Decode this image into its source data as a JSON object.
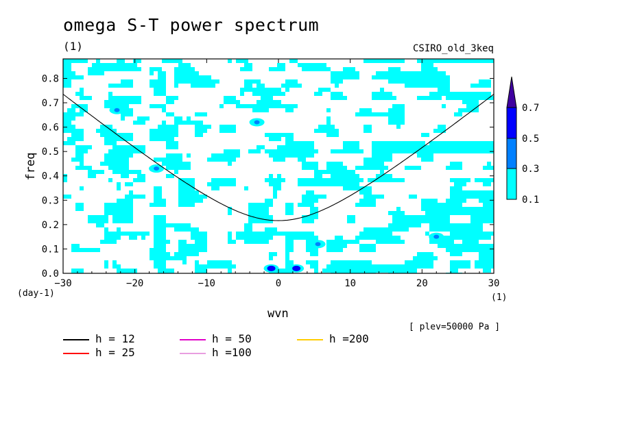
{
  "title": "omega S-T power spectrum",
  "subtitle_units": "(1)",
  "model_label": "CSIRO_old_3keq",
  "level_note": "[ plev=50000 Pa ]",
  "colors": {
    "level_0_1": "#00ffff",
    "level_0_3": "#0080ff",
    "level_0_5": "#0000ff",
    "level_0_7": "#3f00a0",
    "h12": "#000000",
    "h25": "#ff0000",
    "h50": "#e000c8",
    "h100": "#e89ee0",
    "h200": "#ffcc00"
  },
  "chart_data": {
    "type": "heatmap",
    "title": "omega S-T power spectrum",
    "xlabel": "wvn",
    "ylabel": "freq",
    "x_units": "(1)",
    "y_units": "(day-1)",
    "xlim": [
      -30,
      30
    ],
    "ylim": [
      0,
      0.88
    ],
    "xticks": [
      -30,
      -20,
      -10,
      0,
      10,
      20,
      30
    ],
    "yticks": [
      0.0,
      0.1,
      0.2,
      0.3,
      0.4,
      0.5,
      0.6,
      0.7,
      0.8
    ],
    "xtick_labels": [
      "-30",
      "-20",
      "-10",
      "0",
      "10",
      "20",
      "30"
    ],
    "ytick_labels": [
      "0.0",
      "0.1",
      "0.2",
      "0.3",
      "0.4",
      "0.5",
      "0.6",
      "0.7",
      "0.8"
    ],
    "colorbar": {
      "levels": [
        0.1,
        0.3,
        0.5,
        0.7
      ],
      "labels": [
        "0.1",
        "0.3",
        "0.5",
        "0.7"
      ]
    },
    "dispersion_curves": [
      {
        "label": "h = 12",
        "h": 12
      },
      {
        "label": "h = 25",
        "h": 25
      },
      {
        "label": "h = 50",
        "h": 50
      },
      {
        "label": "h =100",
        "h": 100
      },
      {
        "label": "h =200",
        "h": 200
      }
    ],
    "notable_maxima": [
      {
        "x": -1,
        "y": 0.02,
        "level": 0.5
      },
      {
        "x": 2.5,
        "y": 0.02,
        "level": 0.5
      },
      {
        "x": 5.5,
        "y": 0.12,
        "level": 0.3
      },
      {
        "x": -17,
        "y": 0.43,
        "level": 0.3
      },
      {
        "x": -22.5,
        "y": 0.67,
        "level": 0.3
      },
      {
        "x": 22,
        "y": 0.15,
        "level": 0.3
      },
      {
        "x": -3,
        "y": 0.62,
        "level": 0.3
      }
    ]
  }
}
